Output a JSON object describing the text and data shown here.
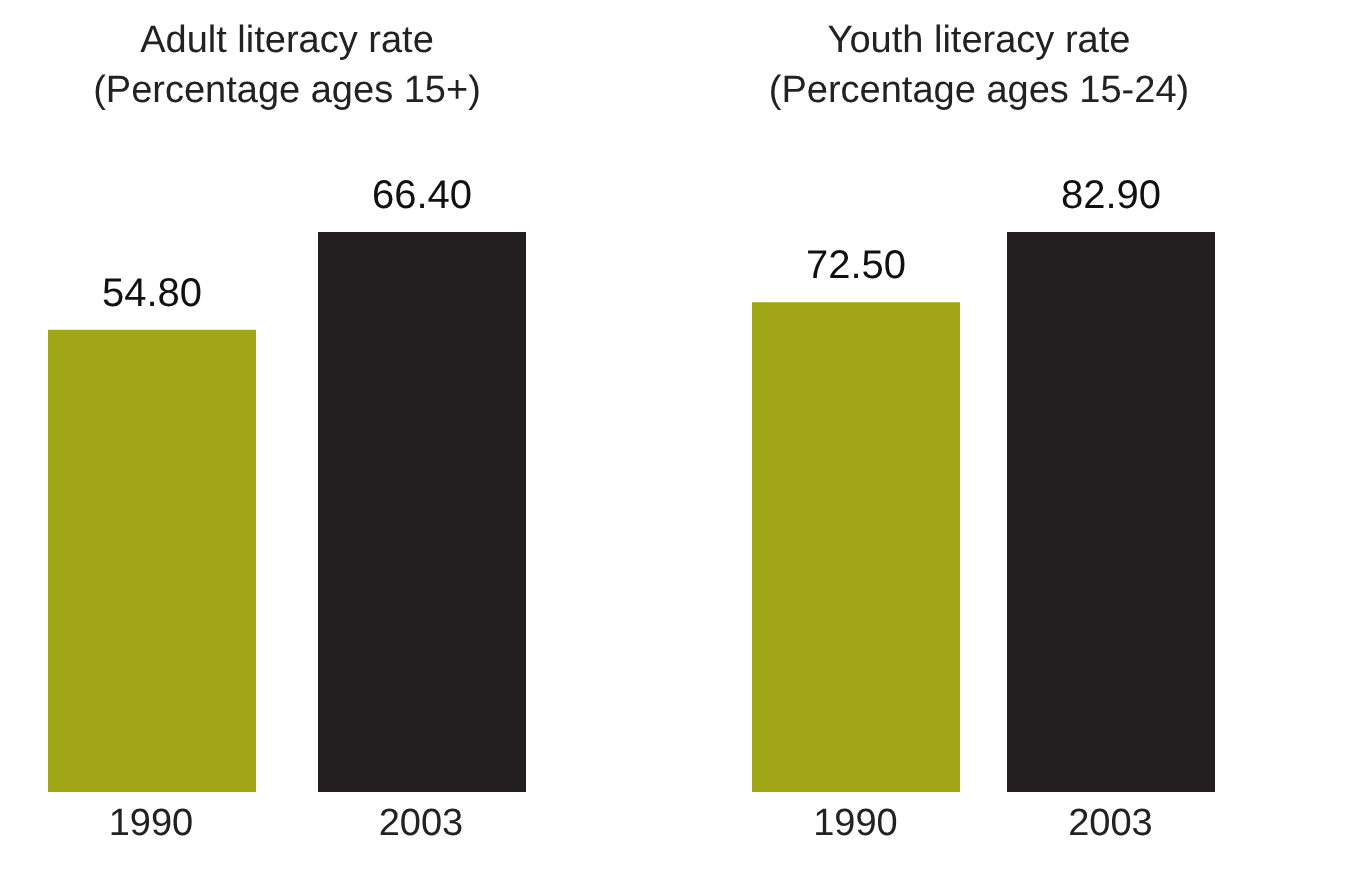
{
  "chart_data": [
    {
      "type": "bar",
      "title": "Adult literacy rate",
      "subtitle": "(Percentage ages 15+)",
      "categories": [
        "1990",
        "2003"
      ],
      "values": [
        54.8,
        66.4
      ],
      "colors": [
        "#a0a617",
        "#231f20"
      ],
      "value_labels": [
        "54.80",
        "66.40"
      ]
    },
    {
      "type": "bar",
      "title": "Youth literacy rate",
      "subtitle": "(Percentage ages 15-24)",
      "categories": [
        "1990",
        "2003"
      ],
      "values": [
        72.5,
        82.9
      ],
      "colors": [
        "#a0a617",
        "#231f20"
      ],
      "value_labels": [
        "72.50",
        "82.90"
      ]
    }
  ]
}
